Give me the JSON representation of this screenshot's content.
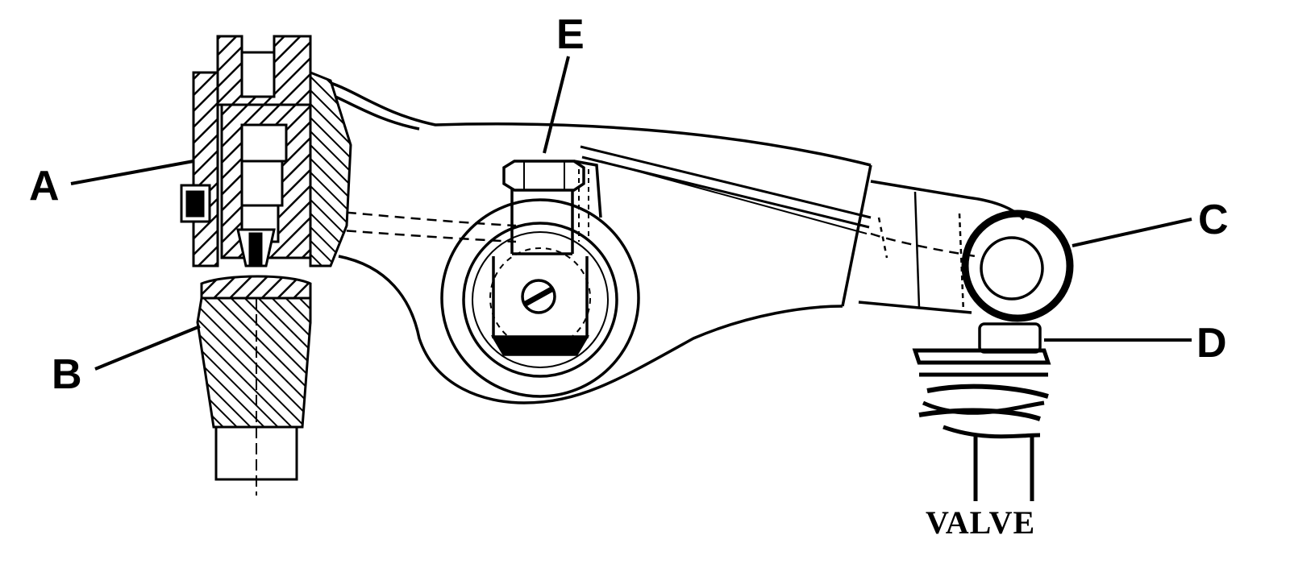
{
  "labels": {
    "a": "A",
    "b": "B",
    "c": "C",
    "d": "D",
    "e": "E",
    "valve": "VALVE"
  },
  "colors": {
    "ink": "#000000",
    "paper": "#ffffff"
  }
}
